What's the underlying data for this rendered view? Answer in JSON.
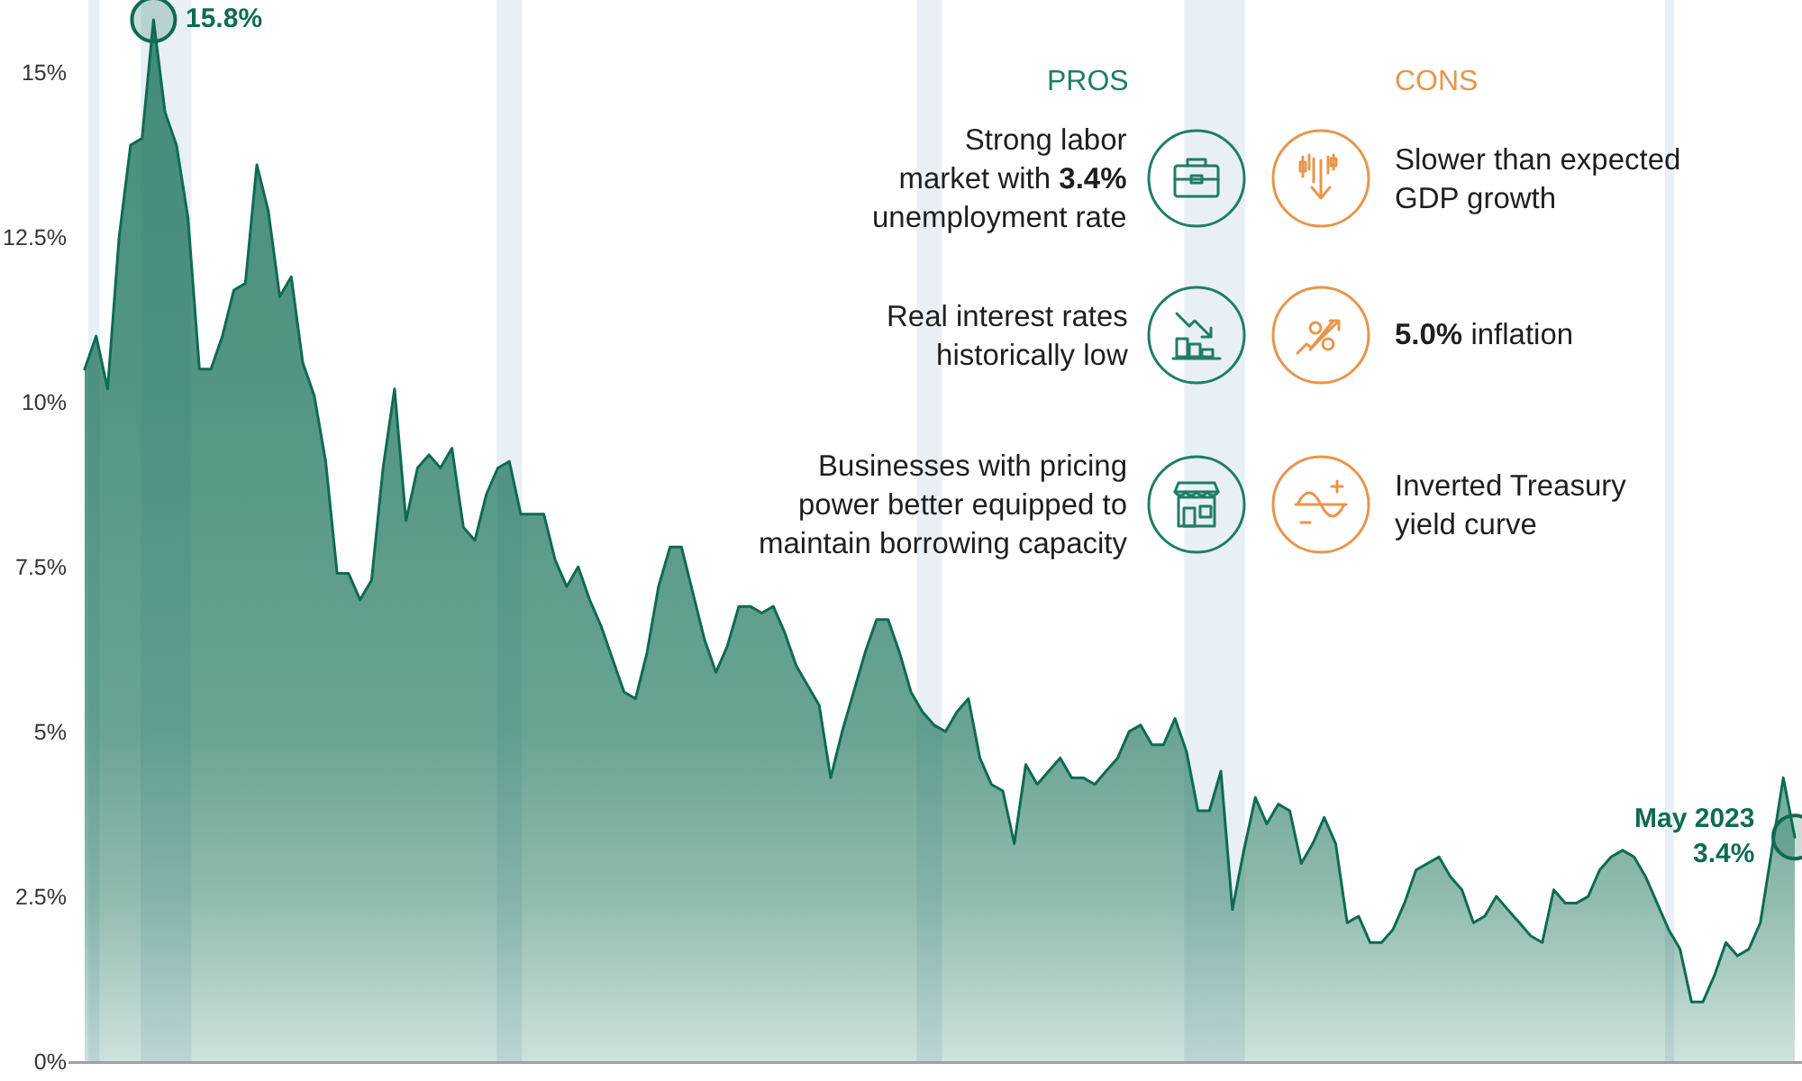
{
  "chart_data": {
    "type": "area",
    "categories": [
      null,
      null,
      null,
      null,
      null,
      null,
      null,
      null,
      null,
      null,
      null,
      null,
      null,
      null,
      null,
      null,
      null,
      null,
      null,
      null,
      null,
      null,
      null,
      null,
      null,
      null,
      null,
      null,
      null,
      null,
      null,
      null,
      null,
      null,
      null,
      null,
      null,
      null,
      null,
      null,
      null,
      null,
      null,
      null,
      null,
      null,
      null,
      null,
      null,
      null,
      null,
      null,
      null,
      null,
      null,
      null,
      null,
      null,
      null,
      null,
      null,
      null,
      null,
      null,
      null,
      null,
      null,
      null,
      null,
      null,
      null,
      null,
      null,
      null,
      null,
      null,
      null,
      null,
      null,
      null,
      null,
      null,
      null,
      null,
      null,
      null,
      null,
      null,
      null,
      null,
      null,
      null,
      null,
      null,
      null,
      null,
      null,
      null,
      null,
      null,
      null,
      null,
      null,
      null,
      null,
      null,
      null,
      null,
      null,
      null,
      null,
      null,
      null,
      null,
      null,
      null,
      null,
      null,
      null,
      null,
      null,
      null,
      null,
      null,
      null,
      null,
      null,
      null,
      null,
      null,
      null,
      null,
      null,
      null,
      null,
      null,
      null,
      null,
      null,
      null,
      null,
      null,
      null,
      null,
      null,
      null,
      null,
      null,
      null,
      null
    ],
    "values": [
      10.5,
      11.0,
      10.2,
      12.5,
      13.9,
      14.0,
      15.8,
      14.4,
      13.9,
      12.8,
      10.5,
      10.5,
      11.0,
      11.7,
      11.8,
      13.6,
      12.9,
      11.6,
      11.9,
      10.6,
      10.1,
      9.1,
      7.4,
      7.4,
      7.0,
      7.3,
      9.0,
      10.2,
      8.2,
      9.0,
      9.2,
      9.0,
      9.3,
      8.1,
      7.9,
      8.6,
      9.0,
      9.1,
      8.3,
      8.3,
      8.3,
      7.6,
      7.2,
      7.5,
      7.0,
      6.6,
      6.1,
      5.6,
      5.5,
      6.2,
      7.2,
      7.8,
      7.8,
      7.1,
      6.4,
      5.9,
      6.3,
      6.9,
      6.9,
      6.8,
      6.9,
      6.5,
      6.0,
      5.7,
      5.4,
      4.3,
      5.0,
      5.6,
      6.2,
      6.7,
      6.7,
      6.2,
      5.6,
      5.3,
      5.1,
      5.0,
      5.3,
      5.5,
      4.6,
      4.2,
      4.1,
      3.3,
      4.5,
      4.2,
      4.4,
      4.6,
      4.3,
      4.3,
      4.2,
      4.4,
      4.6,
      5.0,
      5.1,
      4.8,
      4.8,
      5.2,
      4.7,
      3.8,
      3.8,
      4.4,
      2.3,
      3.2,
      4.0,
      3.6,
      3.9,
      3.8,
      3.0,
      3.3,
      3.7,
      3.3,
      2.1,
      2.2,
      1.8,
      1.8,
      2.0,
      2.4,
      2.9,
      3.0,
      3.1,
      2.8,
      2.6,
      2.1,
      2.2,
      2.5,
      2.3,
      2.1,
      1.9,
      1.8,
      2.6,
      2.4,
      2.4,
      2.5,
      2.9,
      3.1,
      3.2,
      3.1,
      2.8,
      2.4,
      2.0,
      1.7,
      0.9,
      0.9,
      1.3,
      1.8,
      1.6,
      1.7,
      2.1,
      3.2,
      4.3,
      3.4
    ],
    "value_labels": [
      null,
      null,
      null,
      null,
      null,
      null,
      "15.8%",
      null,
      null,
      null,
      null,
      null,
      null,
      null,
      null,
      null,
      null,
      null,
      null,
      null,
      null,
      null,
      null,
      null,
      null,
      null,
      null,
      null,
      null,
      null,
      null,
      null,
      null,
      null,
      null,
      null,
      null,
      null,
      null,
      null,
      null,
      null,
      null,
      null,
      null,
      null,
      null,
      null,
      null,
      null,
      null,
      null,
      null,
      null,
      null,
      null,
      null,
      null,
      null,
      null,
      null,
      null,
      null,
      null,
      null,
      null,
      null,
      null,
      null,
      null,
      null,
      null,
      null,
      null,
      null,
      null,
      null,
      null,
      null,
      null,
      null,
      null,
      null,
      null,
      null,
      null,
      null,
      null,
      null,
      null,
      null,
      null,
      null,
      null,
      null,
      null,
      null,
      null,
      null,
      null,
      null,
      null,
      null,
      null,
      null,
      null,
      null,
      null,
      null,
      null,
      null,
      null,
      null,
      null,
      null,
      null,
      null,
      null,
      null,
      null,
      null,
      null,
      null,
      null,
      null,
      null,
      null,
      null,
      null,
      null,
      null,
      null,
      null,
      null,
      null,
      null,
      null,
      null,
      null,
      null,
      null,
      null,
      null,
      null,
      null,
      null,
      null,
      null,
      null,
      "May 2023\n3.4%"
    ],
    "color": "#0e6b52",
    "ylim": [
      0,
      16.1
    ],
    "yticks": [
      {
        "value": 0,
        "label": "0%"
      },
      {
        "value": 2.5,
        "label": "2.5%"
      },
      {
        "value": 5,
        "label": "5%"
      },
      {
        "value": 7.5,
        "label": "7.5%"
      },
      {
        "value": 10,
        "label": "10%"
      },
      {
        "value": 12.5,
        "label": "12.5%"
      },
      {
        "value": 15,
        "label": "15%"
      }
    ],
    "tick_labels": "y",
    "annotations": [
      "PROS",
      "CONS",
      "Strong labor\nmarket with 3.4%\nunemployment rate",
      "Slower than expected\nGDP growth",
      "Real interest rates\nhistorically low",
      "5.0% inflation",
      "Businesses with pricing\npower better equipped to\nmaintain borrowing capacity",
      "Inverted Treasury\nyield curve"
    ]
  }
}
